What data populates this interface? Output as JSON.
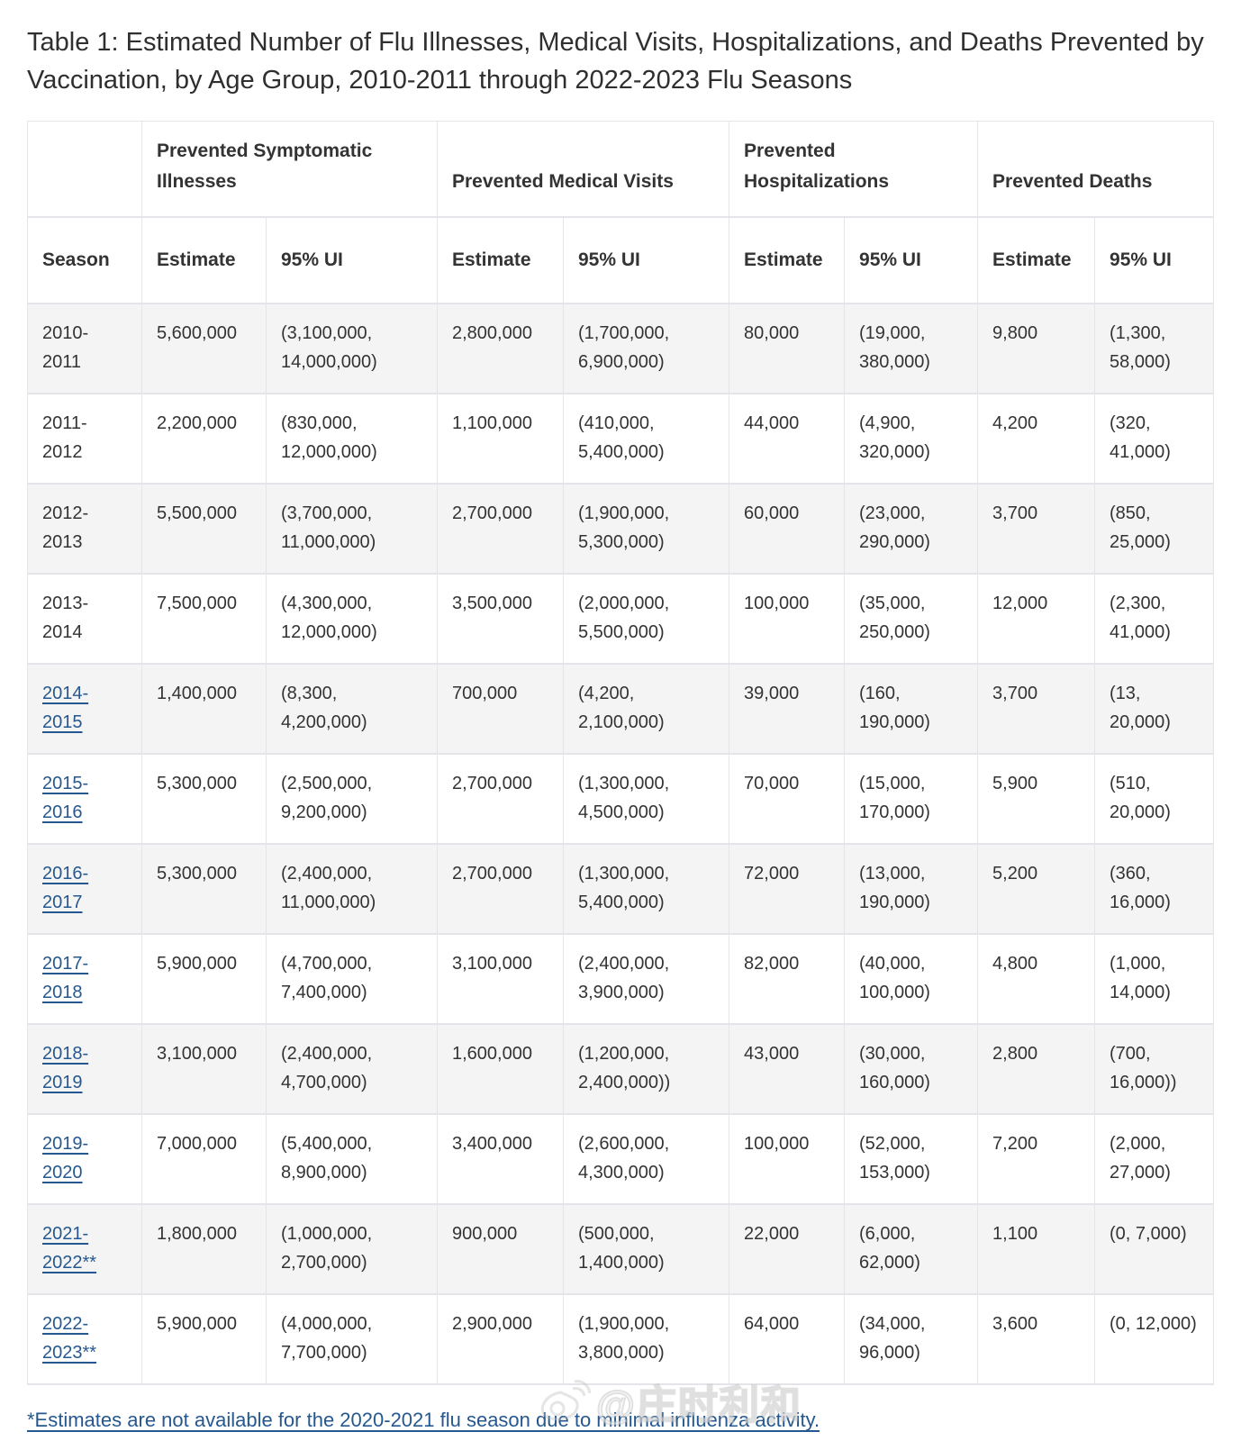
{
  "title": "Table 1: Estimated Number of Flu Illnesses, Medical Visits, Hospitalizations, and Deaths Prevented by Vaccination, by Age Group, 2010-2011 through 2022-2023 Flu Seasons",
  "colors": {
    "text": "#333333",
    "link": "#25588f",
    "stripe": "#f4f4f5",
    "border": "#e3e5e8"
  },
  "table": {
    "group_headers": [
      "Prevented Symptomatic Illnesses",
      "Prevented Medical Visits",
      "Prevented Hospitalizations",
      "Prevented Deaths"
    ],
    "sub_headers": {
      "season": "Season",
      "estimate": "Estimate",
      "ui": "95% UI"
    },
    "rows": [
      {
        "season": "2010-2011",
        "link": false,
        "cells": [
          "5,600,000",
          "(3,100,000, 14,000,000)",
          "2,800,000",
          "(1,700,000, 6,900,000)",
          "80,000",
          "(19,000, 380,000)",
          "9,800",
          "(1,300, 58,000)"
        ]
      },
      {
        "season": "2011-2012",
        "link": false,
        "cells": [
          "2,200,000",
          "(830,000, 12,000,000)",
          "1,100,000",
          "(410,000, 5,400,000)",
          "44,000",
          "(4,900, 320,000)",
          "4,200",
          "(320, 41,000)"
        ]
      },
      {
        "season": "2012-2013",
        "link": false,
        "cells": [
          "5,500,000",
          "(3,700,000, 11,000,000)",
          "2,700,000",
          "(1,900,000, 5,300,000)",
          "60,000",
          "(23,000, 290,000)",
          "3,700",
          "(850, 25,000)"
        ]
      },
      {
        "season": "2013-2014",
        "link": false,
        "cells": [
          "7,500,000",
          "(4,300,000, 12,000,000)",
          "3,500,000",
          "(2,000,000, 5,500,000)",
          "100,000",
          "(35,000, 250,000)",
          "12,000",
          "(2,300, 41,000)"
        ]
      },
      {
        "season": "2014-2015",
        "link": true,
        "cells": [
          "1,400,000",
          "(8,300, 4,200,000)",
          "700,000",
          "(4,200, 2,100,000)",
          "39,000",
          "(160, 190,000)",
          "3,700",
          "(13, 20,000)"
        ]
      },
      {
        "season": "2015-2016",
        "link": true,
        "cells": [
          "5,300,000",
          "(2,500,000, 9,200,000)",
          "2,700,000",
          "(1,300,000, 4,500,000)",
          "70,000",
          "(15,000, 170,000)",
          "5,900",
          "(510, 20,000)"
        ]
      },
      {
        "season": "2016-2017",
        "link": true,
        "cells": [
          "5,300,000",
          "(2,400,000, 11,000,000)",
          "2,700,000",
          "(1,300,000, 5,400,000)",
          "72,000",
          "(13,000, 190,000)",
          "5,200",
          "(360, 16,000)"
        ]
      },
      {
        "season": "2017-2018",
        "link": true,
        "cells": [
          "5,900,000",
          "(4,700,000, 7,400,000)",
          "3,100,000",
          "(2,400,000, 3,900,000)",
          "82,000",
          "(40,000, 100,000)",
          "4,800",
          "(1,000, 14,000)"
        ]
      },
      {
        "season": "2018-2019",
        "link": true,
        "cells": [
          "3,100,000",
          "(2,400,000, 4,700,000)",
          "1,600,000",
          "(1,200,000, 2,400,000))",
          "43,000",
          "(30,000, 160,000)",
          "2,800",
          "(700, 16,000))"
        ]
      },
      {
        "season": "2019-2020",
        "link": true,
        "cells": [
          "7,000,000",
          "(5,400,000, 8,900,000)",
          "3,400,000",
          "(2,600,000, 4,300,000)",
          "100,000",
          "(52,000, 153,000)",
          "7,200",
          "(2,000, 27,000)"
        ]
      },
      {
        "season": "2021-2022**",
        "link": true,
        "cells": [
          "1,800,000",
          "(1,000,000, 2,700,000)",
          "900,000",
          "(500,000, 1,400,000)",
          "22,000",
          "(6,000, 62,000)",
          "1,100",
          "(0, 7,000)"
        ]
      },
      {
        "season": "2022-2023**",
        "link": true,
        "cells": [
          "5,900,000",
          "(4,000,000, 7,700,000)",
          "2,900,000",
          "(1,900,000, 3,800,000)",
          "64,000",
          "(34,000, 96,000)",
          "3,600",
          "(0, 12,000)"
        ]
      }
    ]
  },
  "footnote": "*Estimates are not available for the 2020-2021 flu season due to minimal influenza activity.",
  "watermark": "@庄时利和"
}
